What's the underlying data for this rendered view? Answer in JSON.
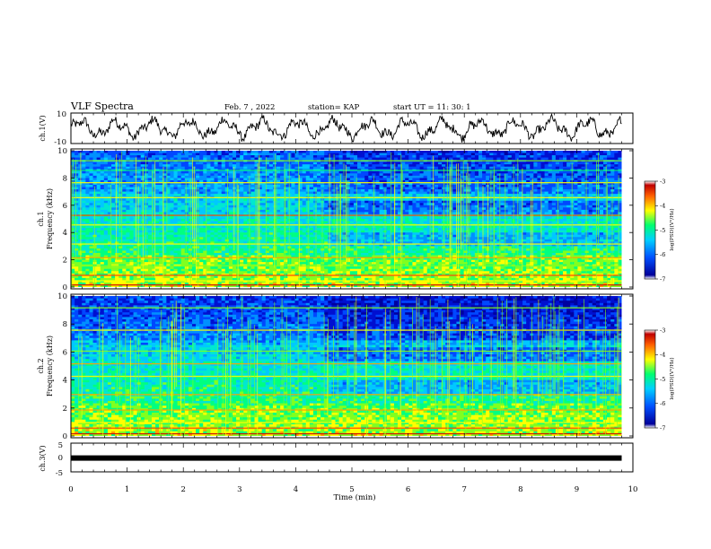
{
  "header": {
    "title": "VLF Spectra",
    "date": "Feb. 7 , 2022",
    "station": "station= KAP",
    "start_ut": "start  UT =   11: 30: 1"
  },
  "chart_data": {
    "type": "heatmap",
    "xlabel": "Time  (min)",
    "x_ticks": [
      "0",
      "1",
      "2",
      "3",
      "4",
      "5",
      "6",
      "7",
      "8",
      "9",
      "10"
    ],
    "xlim": [
      0,
      10
    ],
    "data_end_min": 9.8,
    "panels": [
      {
        "id": "ch1-waveform",
        "type": "line",
        "ylabel": "ch.1(V)",
        "ylim": [
          -10,
          10
        ],
        "y_ticks": [
          "10",
          "-10"
        ],
        "description_values": {
          "amplitude_range": [
            -8,
            9
          ]
        }
      },
      {
        "id": "ch1-spectrogram",
        "type": "heatmap",
        "ylabel_1": "ch.1",
        "ylabel_2": "Frequency  (kHz)",
        "ylim": [
          0,
          10
        ],
        "y_ticks": [
          "0",
          "2",
          "4",
          "6",
          "8",
          "10"
        ],
        "colorbar": {
          "label": "log(PSD)(V²/Hz)",
          "range": [
            -7,
            -3
          ],
          "ticks": [
            "-3",
            "-4",
            "-5",
            "-6",
            "-7"
          ]
        }
      },
      {
        "id": "ch2-spectrogram",
        "type": "heatmap",
        "ylabel_1": "ch.2",
        "ylabel_2": "Frequency  (kHz)",
        "ylim": [
          0,
          10
        ],
        "y_ticks": [
          "0",
          "2",
          "4",
          "6",
          "8",
          "10"
        ],
        "colorbar": {
          "label": "log(PSD)(V²/Hz)",
          "range": [
            -7,
            -3
          ],
          "ticks": [
            "-3",
            "-4",
            "-5",
            "-6",
            "-7"
          ]
        }
      },
      {
        "id": "ch3-waveform",
        "type": "line",
        "ylabel": "ch.3(V)",
        "ylim": [
          -5,
          5
        ],
        "y_ticks": [
          "5",
          "0",
          "-5"
        ],
        "description_values": {
          "level": -0.2
        }
      }
    ],
    "colormap": [
      "#0000a0",
      "#0040ff",
      "#00c0ff",
      "#00ff80",
      "#ffff00",
      "#ff8000",
      "#d00000",
      "#ffffff"
    ]
  }
}
